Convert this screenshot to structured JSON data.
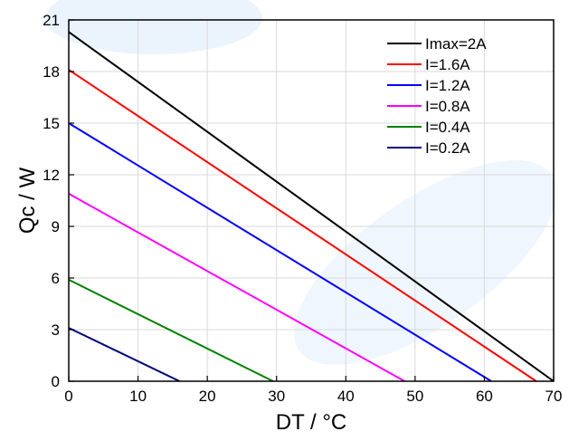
{
  "chart_data": {
    "type": "line",
    "xlabel": "DT / °C",
    "ylabel": "Qc / W",
    "xlim": [
      0,
      70
    ],
    "ylim": [
      0,
      21
    ],
    "xticks": [
      0,
      10,
      20,
      30,
      40,
      50,
      60,
      70
    ],
    "yticks": [
      0,
      3,
      6,
      9,
      12,
      15,
      18,
      21
    ],
    "grid": true,
    "legend_position": "top-right",
    "series": [
      {
        "name": "Imax=2A",
        "color": "#000000",
        "x": [
          0,
          70
        ],
        "y": [
          20.3,
          0
        ]
      },
      {
        "name": "I=1.6A",
        "color": "#ff0000",
        "x": [
          0,
          67.5
        ],
        "y": [
          18.1,
          0
        ]
      },
      {
        "name": "I=1.2A",
        "color": "#0000ff",
        "x": [
          0,
          61
        ],
        "y": [
          15.0,
          0
        ]
      },
      {
        "name": "I=0.8A",
        "color": "#ff00ff",
        "x": [
          0,
          48.5
        ],
        "y": [
          10.9,
          0
        ]
      },
      {
        "name": "I=0.4A",
        "color": "#008000",
        "x": [
          0,
          29.5
        ],
        "y": [
          5.9,
          0
        ]
      },
      {
        "name": "I=0.2A",
        "color": "#000080",
        "x": [
          0,
          16
        ],
        "y": [
          3.1,
          0
        ]
      }
    ]
  }
}
